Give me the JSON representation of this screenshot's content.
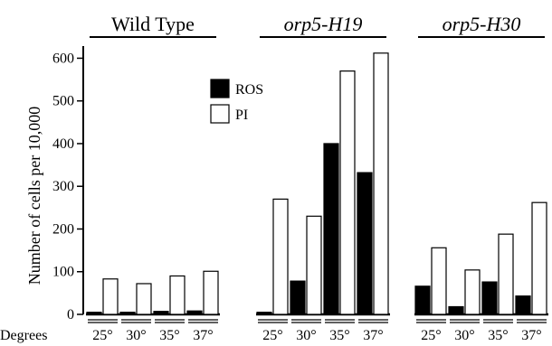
{
  "chart_data": {
    "type": "bar",
    "ylabel": "Number of cells per 10,000",
    "xlabel": "Degrees",
    "ylim": [
      0,
      620
    ],
    "yticks": [
      0,
      100,
      200,
      300,
      400,
      500,
      600
    ],
    "temperatures": [
      "25°",
      "30°",
      "35°",
      "37°"
    ],
    "legend": {
      "placement": "top-left-inside",
      "entries": [
        {
          "name": "ROS",
          "color": "#000000"
        },
        {
          "name": "PI",
          "color": "#ffffff"
        }
      ]
    },
    "groups": [
      {
        "name": "Wild Type",
        "italic": false,
        "series": [
          {
            "name": "ROS",
            "values": [
              5,
              5,
              7,
              8
            ]
          },
          {
            "name": "PI",
            "values": [
              83,
              72,
              90,
              101
            ]
          }
        ]
      },
      {
        "name": "orp5-H19",
        "italic": true,
        "series": [
          {
            "name": "ROS",
            "values": [
              5,
              78,
              400,
              332
            ]
          },
          {
            "name": "PI",
            "values": [
              270,
              230,
              570,
              612
            ]
          }
        ]
      },
      {
        "name": "orp5-H30",
        "italic": true,
        "series": [
          {
            "name": "ROS",
            "values": [
              66,
              18,
              76,
              43
            ]
          },
          {
            "name": "PI",
            "values": [
              156,
              104,
              188,
              262
            ]
          }
        ]
      }
    ]
  }
}
